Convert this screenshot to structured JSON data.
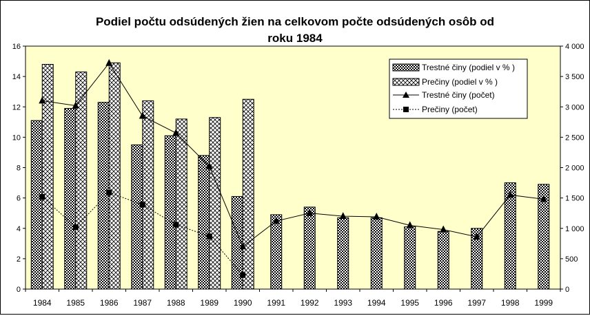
{
  "chart_data": {
    "type": "bar",
    "title_line1": "Podiel počtu odsúdených žien na celkovom počte odsúdených osôb od",
    "title_line2": "roku 1984",
    "categories": [
      "1984",
      "1985",
      "1986",
      "1987",
      "1988",
      "1989",
      "1990",
      "1991",
      "1992",
      "1993",
      "1994",
      "1995",
      "1996",
      "1997",
      "1998",
      "1999"
    ],
    "y_left": {
      "min": 0,
      "max": 16,
      "ticks": [
        "0",
        "2",
        "4",
        "6",
        "8",
        "10",
        "12",
        "14",
        "16"
      ]
    },
    "y_right": {
      "min": 0,
      "max": 4000,
      "ticks": [
        "0",
        "500",
        "1 000",
        "1 500",
        "2 000",
        "2 500",
        "3 000",
        "3 500",
        "4 000"
      ]
    },
    "grid": false,
    "legend_position": "top-right",
    "series": [
      {
        "name": "Trestné činy (podiel v % )",
        "type": "bar",
        "axis": "left",
        "pattern": "dots",
        "values": [
          11.1,
          11.9,
          12.3,
          9.5,
          10.1,
          8.8,
          6.1,
          4.9,
          5.4,
          4.7,
          4.7,
          4.1,
          3.8,
          4.0,
          7.0,
          6.9
        ]
      },
      {
        "name": "Prečiny (podiel v % )",
        "type": "bar",
        "axis": "left",
        "pattern": "crosshatch",
        "values": [
          14.8,
          14.3,
          14.9,
          12.4,
          11.2,
          11.3,
          12.5,
          null,
          null,
          null,
          null,
          null,
          null,
          null,
          null,
          null
        ]
      },
      {
        "name": "Trestné činy (počet)",
        "type": "line",
        "axis": "right",
        "marker": "triangle",
        "values": [
          3100,
          3020,
          3720,
          2850,
          2570,
          2020,
          700,
          1120,
          1250,
          1200,
          1190,
          1050,
          980,
          860,
          1550,
          1480
        ]
      },
      {
        "name": "Prečiny (počet)",
        "type": "line",
        "axis": "right",
        "marker": "square",
        "dashed": true,
        "values": [
          1520,
          1020,
          1590,
          1390,
          1060,
          870,
          230,
          null,
          null,
          null,
          null,
          null,
          null,
          null,
          null,
          null
        ]
      }
    ],
    "colors": {
      "plot_background": "#ffffcc",
      "bar_fill": "#000000",
      "line": "#000000"
    }
  }
}
